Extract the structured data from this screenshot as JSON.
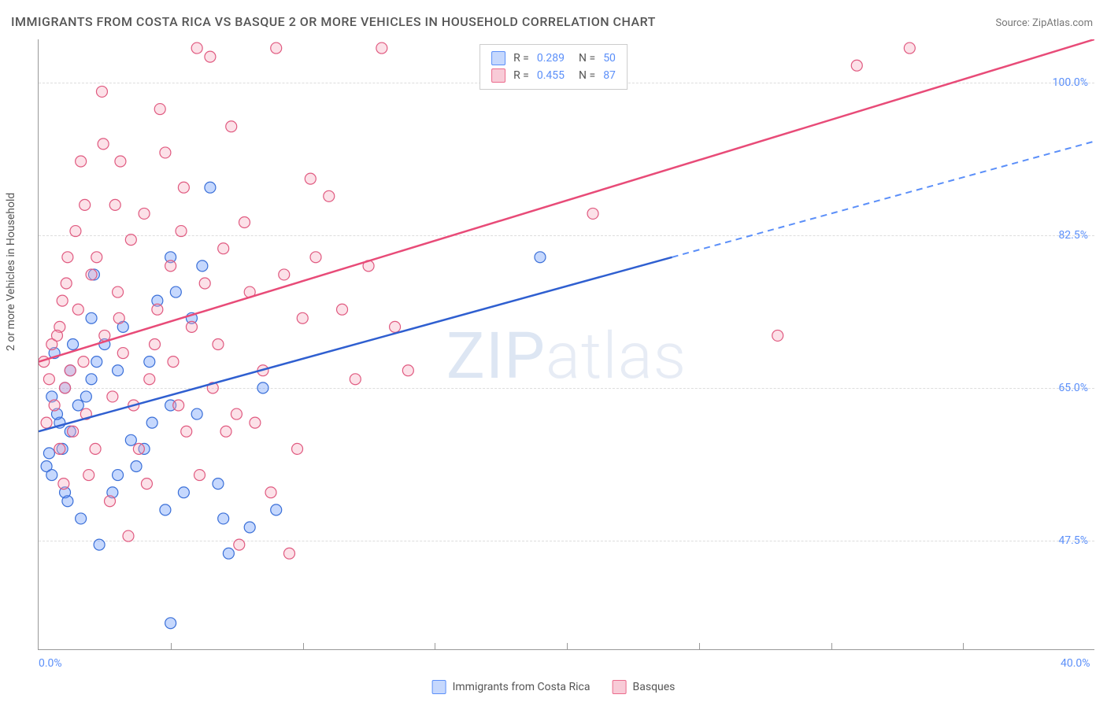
{
  "title": "IMMIGRANTS FROM COSTA RICA VS BASQUE 2 OR MORE VEHICLES IN HOUSEHOLD CORRELATION CHART",
  "source": "Source: ZipAtlas.com",
  "watermark": "ZIPatlas",
  "ylabel": "2 or more Vehicles in Household",
  "chart": {
    "type": "scatter",
    "xlim": [
      0,
      40
    ],
    "ylim": [
      35,
      105
    ],
    "yticks": [
      {
        "v": 47.5,
        "label": "47.5%"
      },
      {
        "v": 65.0,
        "label": "65.0%"
      },
      {
        "v": 82.5,
        "label": "82.5%"
      },
      {
        "v": 100.0,
        "label": "100.0%"
      }
    ],
    "xticks": [
      {
        "v": 0,
        "label": "0.0%"
      },
      {
        "v": 40,
        "label": "40.0%"
      }
    ],
    "xtick_marks": [
      5,
      10,
      15,
      20,
      25,
      30,
      35
    ],
    "background_color": "#ffffff",
    "grid_color": "#dddddd",
    "marker_radius": 7,
    "colors": {
      "blue": "#5b8ff9",
      "pink": "#eb6b8c"
    },
    "series": [
      {
        "name": "Immigrants from Costa Rica",
        "color": "blue",
        "R": "0.289",
        "N": "50",
        "trend": {
          "x1": 0,
          "y1": 60,
          "x2": 24,
          "y2": 80,
          "x_ext": 40,
          "y_ext": 93.3
        },
        "points": [
          [
            0.3,
            56
          ],
          [
            0.4,
            57.5
          ],
          [
            0.5,
            55
          ],
          [
            1,
            53
          ],
          [
            1.2,
            60
          ],
          [
            0.8,
            61
          ],
          [
            1.5,
            63
          ],
          [
            1,
            65
          ],
          [
            2,
            66
          ],
          [
            1.2,
            67
          ],
          [
            2.2,
            68
          ],
          [
            1.8,
            64
          ],
          [
            3,
            67
          ],
          [
            2.5,
            70
          ],
          [
            3.2,
            72
          ],
          [
            2,
            73
          ],
          [
            1.3,
            70
          ],
          [
            0.6,
            69
          ],
          [
            3.5,
            59
          ],
          [
            4,
            58
          ],
          [
            4.2,
            68
          ],
          [
            4.5,
            75
          ],
          [
            5,
            63
          ],
          [
            4.8,
            51
          ],
          [
            5.5,
            53
          ],
          [
            6,
            62
          ],
          [
            5.2,
            76
          ],
          [
            6.2,
            79
          ],
          [
            5.8,
            73
          ],
          [
            7,
            50
          ],
          [
            7.2,
            46
          ],
          [
            8,
            49
          ],
          [
            8.5,
            65
          ],
          [
            9,
            51
          ],
          [
            6.5,
            88
          ],
          [
            5,
            80
          ],
          [
            3,
            55
          ],
          [
            2.8,
            53
          ],
          [
            1.6,
            50
          ],
          [
            2.3,
            47
          ],
          [
            1.1,
            52
          ],
          [
            0.9,
            58
          ],
          [
            0.5,
            64
          ],
          [
            0.7,
            62
          ],
          [
            5,
            38
          ],
          [
            19,
            80
          ],
          [
            4.3,
            61
          ],
          [
            3.7,
            56
          ],
          [
            6.8,
            54
          ],
          [
            2.1,
            78
          ]
        ]
      },
      {
        "name": "Basques",
        "color": "pink",
        "R": "0.455",
        "N": "87",
        "trend": {
          "x1": 0,
          "y1": 68,
          "x2": 40,
          "y2": 105
        },
        "points": [
          [
            0.2,
            68
          ],
          [
            0.5,
            70
          ],
          [
            0.8,
            72
          ],
          [
            1,
            65
          ],
          [
            1.2,
            67
          ],
          [
            1.5,
            74
          ],
          [
            1.3,
            60
          ],
          [
            1.8,
            62
          ],
          [
            2,
            78
          ],
          [
            2.2,
            80
          ],
          [
            2.5,
            71
          ],
          [
            2.8,
            64
          ],
          [
            3,
            76
          ],
          [
            3.2,
            69
          ],
          [
            3.5,
            82
          ],
          [
            3.8,
            58
          ],
          [
            4,
            85
          ],
          [
            4.2,
            66
          ],
          [
            4.5,
            74
          ],
          [
            4.8,
            92
          ],
          [
            5,
            79
          ],
          [
            5.3,
            63
          ],
          [
            5.5,
            88
          ],
          [
            5.8,
            72
          ],
          [
            6,
            104
          ],
          [
            6.3,
            77
          ],
          [
            6.5,
            103
          ],
          [
            6.8,
            70
          ],
          [
            7,
            81
          ],
          [
            7.3,
            95
          ],
          [
            7.5,
            62
          ],
          [
            7.8,
            84
          ],
          [
            8,
            76
          ],
          [
            8.5,
            67
          ],
          [
            9,
            104
          ],
          [
            9.3,
            78
          ],
          [
            9.5,
            46
          ],
          [
            10,
            73
          ],
          [
            10.3,
            89
          ],
          [
            10.5,
            80
          ],
          [
            11,
            87
          ],
          [
            11.5,
            74
          ],
          [
            12,
            66
          ],
          [
            12.5,
            79
          ],
          [
            13,
            104
          ],
          [
            13.5,
            72
          ],
          [
            14,
            67
          ],
          [
            2.4,
            99
          ],
          [
            3.1,
            91
          ],
          [
            4.6,
            97
          ],
          [
            1.9,
            55
          ],
          [
            2.7,
            52
          ],
          [
            3.4,
            48
          ],
          [
            4.1,
            54
          ],
          [
            0.6,
            63
          ],
          [
            0.9,
            75
          ],
          [
            1.1,
            80
          ],
          [
            1.4,
            83
          ],
          [
            1.7,
            68
          ],
          [
            6.1,
            55
          ],
          [
            7.6,
            47
          ],
          [
            8.8,
            53
          ],
          [
            0.3,
            61
          ],
          [
            0.4,
            66
          ],
          [
            0.7,
            71
          ],
          [
            5.1,
            68
          ],
          [
            5.6,
            60
          ],
          [
            21,
            85
          ],
          [
            31,
            102
          ],
          [
            33,
            104
          ],
          [
            28,
            71
          ],
          [
            1.6,
            91
          ],
          [
            0.8,
            58
          ],
          [
            2.9,
            86
          ],
          [
            3.6,
            63
          ],
          [
            4.4,
            70
          ],
          [
            5.4,
            83
          ],
          [
            6.6,
            65
          ],
          [
            7.1,
            60
          ],
          [
            0.95,
            54
          ],
          [
            2.15,
            58
          ],
          [
            3.05,
            73
          ],
          [
            1.05,
            77
          ],
          [
            1.75,
            86
          ],
          [
            2.45,
            93
          ],
          [
            8.2,
            61
          ],
          [
            9.8,
            58
          ]
        ]
      }
    ]
  },
  "legend_bottom": [
    {
      "label": "Immigrants from Costa Rica",
      "color": "blue"
    },
    {
      "label": "Basques",
      "color": "pink"
    }
  ]
}
